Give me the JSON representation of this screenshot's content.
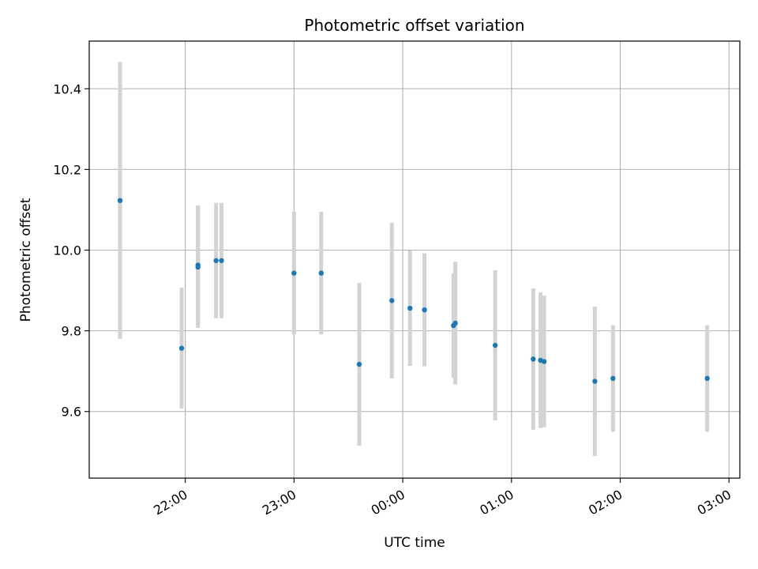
{
  "chart_data": {
    "type": "scatter",
    "title": "Photometric offset variation",
    "xlabel": "UTC time",
    "ylabel": "Photometric offset",
    "x_axis": "UTC time (clock, h:mm; times after 00:00 are on the following day)",
    "xlim": [
      "21:07",
      "03:06"
    ],
    "ylim": [
      9.435,
      10.518
    ],
    "x_ticks": [
      "22:00",
      "23:00",
      "00:00",
      "01:00",
      "02:00",
      "03:00"
    ],
    "y_ticks": [
      "9.6",
      "9.8",
      "10.0",
      "10.2",
      "10.4"
    ],
    "grid": true,
    "colors": {
      "point": "#1f77b4",
      "errorbar": "#d3d3d3",
      "grid": "#b0b0b0"
    },
    "points": [
      {
        "x": "21:24",
        "y": 10.123,
        "err": 0.343
      },
      {
        "x": "21:58",
        "y": 9.757,
        "err": 0.15
      },
      {
        "x": "22:07",
        "y": 9.958,
        "err": 0.151
      },
      {
        "x": "22:07",
        "y": 9.963,
        "err": 0.148
      },
      {
        "x": "22:17",
        "y": 9.974,
        "err": 0.143
      },
      {
        "x": "22:20",
        "y": 9.974,
        "err": 0.143
      },
      {
        "x": "23:00",
        "y": 9.943,
        "err": 0.152
      },
      {
        "x": "23:15",
        "y": 9.943,
        "err": 0.152
      },
      {
        "x": "23:36",
        "y": 9.717,
        "err": 0.202
      },
      {
        "x": "23:54",
        "y": 9.875,
        "err": 0.193
      },
      {
        "x": "00:04",
        "y": 9.856,
        "err": 0.143
      },
      {
        "x": "00:12",
        "y": 9.852,
        "err": 0.14
      },
      {
        "x": "00:28",
        "y": 9.813,
        "err": 0.13
      },
      {
        "x": "00:29",
        "y": 9.819,
        "err": 0.152
      },
      {
        "x": "00:51",
        "y": 9.764,
        "err": 0.186
      },
      {
        "x": "01:12",
        "y": 9.73,
        "err": 0.175
      },
      {
        "x": "01:16",
        "y": 9.727,
        "err": 0.168
      },
      {
        "x": "01:18",
        "y": 9.724,
        "err": 0.163
      },
      {
        "x": "01:46",
        "y": 9.675,
        "err": 0.185
      },
      {
        "x": "01:56",
        "y": 9.682,
        "err": 0.132
      },
      {
        "x": "02:48",
        "y": 9.682,
        "err": 0.132
      }
    ]
  }
}
